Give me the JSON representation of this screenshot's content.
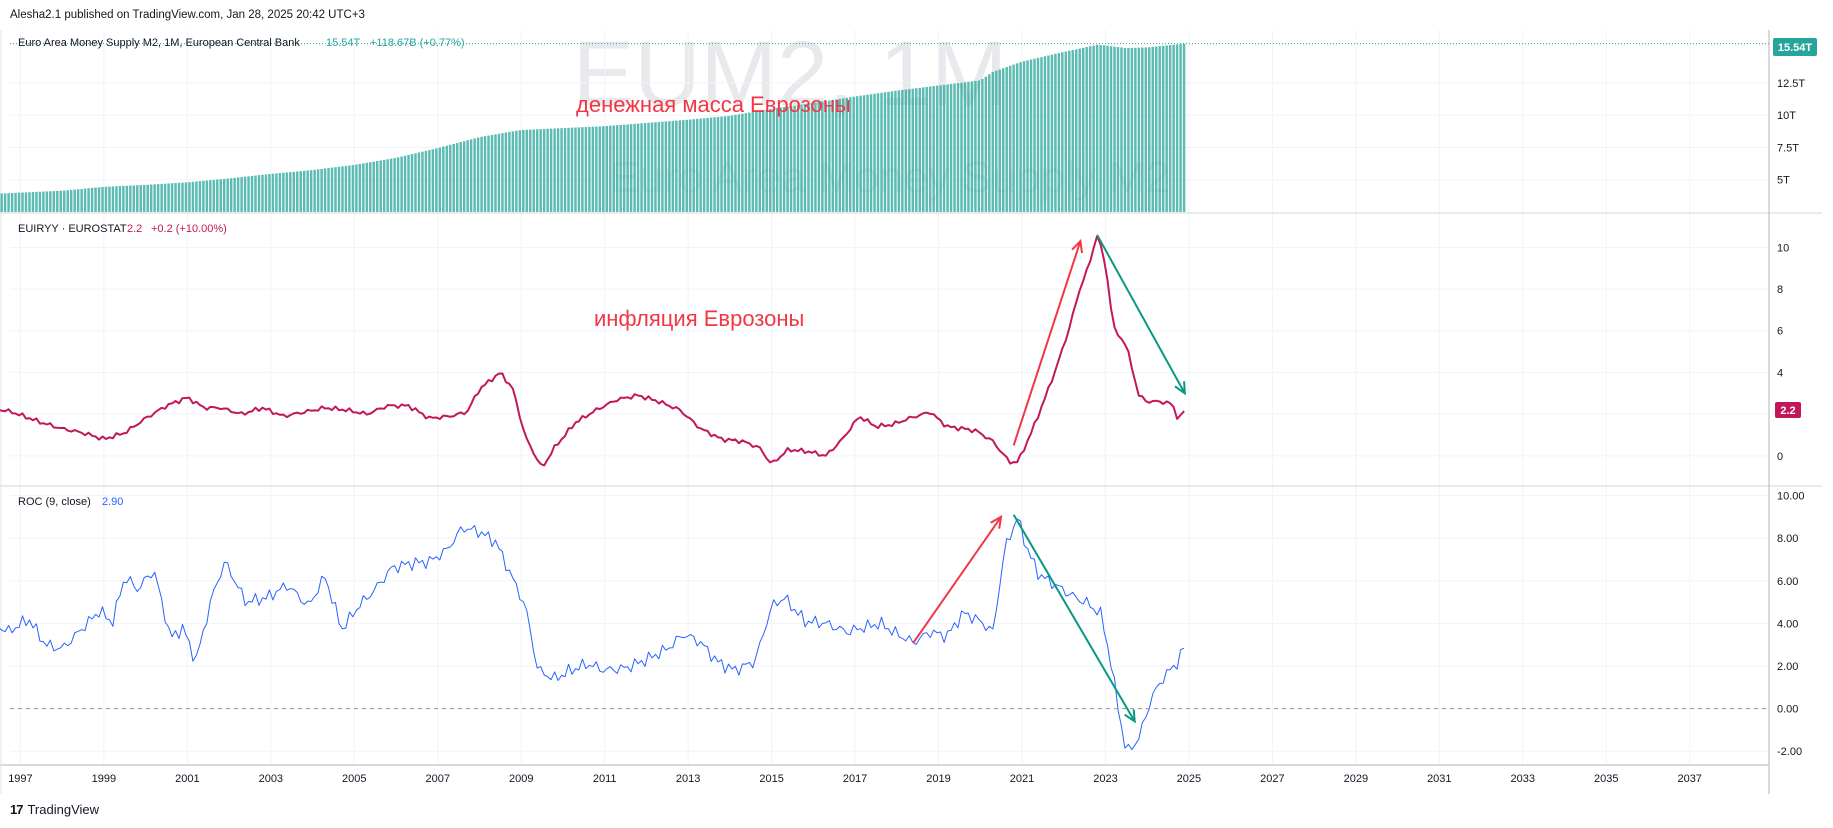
{
  "header": {
    "published": "Alesha2.1 published on TradingView.com, Jan 28, 2025 20:42 UTC+3"
  },
  "footer": {
    "brand": "TradingView",
    "logo_glyph": "17"
  },
  "watermark": {
    "symbol": "EUM2, 1M",
    "name": "Euro Area Money Supply M2"
  },
  "annotations": {
    "m2_label": "денежная масса Еврозоны",
    "inflation_label": "инфляция Еврозоны"
  },
  "colors": {
    "m2": "#26a69a",
    "inflation": "#c2185b",
    "roc": "#2962ff",
    "arrow_red": "#f23645",
    "arrow_green": "#089981",
    "grid": "#f0f3fa",
    "axis_text": "#131722"
  },
  "chart_data": [
    {
      "type": "bar",
      "pane": "top",
      "legend": {
        "title": "Euro Area Money Supply M2, 1M, European Central Bank",
        "value": "15.54T",
        "change": "+118.67B (+0.77%)"
      },
      "y_ticks": [
        "12.5T",
        "10T",
        "7.5T",
        "5T"
      ],
      "y_tick_values": [
        12.5,
        10,
        7.5,
        5
      ],
      "last_value_label": "15.54T",
      "ylim": [
        2.5,
        16.6
      ],
      "unit": "T EUR",
      "x": [
        1996.3,
        1997,
        1998,
        1999,
        2000,
        2001,
        2002,
        2003,
        2004,
        2005,
        2006,
        2007,
        2008,
        2008.8,
        2009,
        2010,
        2011,
        2012,
        2013,
        2014,
        2015,
        2016,
        2017,
        2018,
        2019,
        2020,
        2020.3,
        2021,
        2022,
        2022.8,
        2023,
        2023.5,
        2024,
        2024.9
      ],
      "values": [
        3.9,
        4.0,
        4.15,
        4.45,
        4.6,
        4.8,
        5.1,
        5.45,
        5.75,
        6.15,
        6.7,
        7.45,
        8.3,
        8.75,
        8.85,
        9.0,
        9.15,
        9.4,
        9.65,
        9.95,
        10.5,
        10.95,
        11.45,
        11.9,
        12.3,
        12.7,
        13.35,
        14.15,
        14.9,
        15.45,
        15.4,
        15.2,
        15.25,
        15.54
      ]
    },
    {
      "type": "line",
      "pane": "middle",
      "legend": {
        "title": "EUIRYY · EUROSTAT",
        "value": "2.2",
        "change": "+0.2 (+10.00%)"
      },
      "y_ticks": [
        "10",
        "8",
        "6",
        "4",
        "2",
        "0"
      ],
      "y_tick_values": [
        10,
        8,
        6,
        4,
        2,
        0
      ],
      "last_value_label": "2.2",
      "ylim": [
        -1.4,
        11.6
      ],
      "unit": "%",
      "x": [
        1996.3,
        1996.8,
        1997.5,
        1998,
        1998.5,
        1999,
        1999.5,
        2000,
        2000.5,
        2001,
        2001.4,
        2001.8,
        2002.3,
        2002.8,
        2003.3,
        2003.8,
        2004.3,
        2004.8,
        2005.3,
        2005.8,
        2006.3,
        2006.8,
        2007.3,
        2007.7,
        2008.0,
        2008.5,
        2008.8,
        2009.1,
        2009.5,
        2009.8,
        2010.3,
        2010.8,
        2011.3,
        2011.8,
        2012.3,
        2012.8,
        2013.3,
        2013.8,
        2014.3,
        2014.7,
        2015.0,
        2015.4,
        2015.9,
        2016.3,
        2016.7,
        2017.1,
        2017.5,
        2017.9,
        2018.3,
        2018.8,
        2019.2,
        2019.6,
        2019.9,
        2020.3,
        2020.7,
        2020.9,
        2021.2,
        2021.5,
        2021.8,
        2022.1,
        2022.4,
        2022.6,
        2022.8,
        2023.0,
        2023.2,
        2023.5,
        2023.8,
        2024.0,
        2024.3,
        2024.6,
        2024.75,
        2024.9
      ],
      "values": [
        2.3,
        2.1,
        1.6,
        1.3,
        1.1,
        0.8,
        1.1,
        1.8,
        2.4,
        2.8,
        2.3,
        2.3,
        2.0,
        2.3,
        1.9,
        2.1,
        2.3,
        2.2,
        2.0,
        2.4,
        2.4,
        1.8,
        1.9,
        2.1,
        3.2,
        4.0,
        3.2,
        0.9,
        -0.6,
        0.4,
        1.6,
        2.2,
        2.7,
        2.9,
        2.6,
        2.2,
        1.3,
        0.8,
        0.7,
        0.4,
        -0.4,
        0.3,
        0.2,
        0.0,
        0.8,
        1.9,
        1.4,
        1.5,
        1.8,
        2.1,
        1.4,
        1.3,
        1.2,
        0.7,
        -0.3,
        -0.3,
        1.0,
        2.5,
        4.1,
        5.9,
        8.1,
        9.1,
        10.6,
        9.2,
        6.1,
        5.3,
        2.9,
        2.6,
        2.6,
        2.5,
        1.7,
        2.2
      ]
    },
    {
      "type": "line",
      "pane": "bottom",
      "legend": {
        "title": "ROC (9, close)",
        "value": "2.90"
      },
      "y_ticks": [
        "10.00",
        "8.00",
        "6.00",
        "4.00",
        "2.00",
        "0.00",
        "-2.00"
      ],
      "y_tick_values": [
        10,
        8,
        6,
        4,
        2,
        0,
        -2
      ],
      "zero_line": 0,
      "ylim": [
        -2.6,
        10.4
      ],
      "unit": "%",
      "x": [
        1996.3,
        1996.7,
        1997.2,
        1997.6,
        1998.0,
        1998.5,
        1998.9,
        1999.2,
        1999.5,
        1999.8,
        2000.2,
        2000.6,
        2000.9,
        2001.2,
        2001.6,
        2001.9,
        2002.4,
        2002.9,
        2003.4,
        2003.9,
        2004.3,
        2004.7,
        2005.1,
        2005.5,
        2005.9,
        2006.3,
        2006.8,
        2007.2,
        2007.6,
        2008.0,
        2008.4,
        2008.7,
        2009.1,
        2009.4,
        2009.8,
        2010.2,
        2010.6,
        2011.0,
        2011.5,
        2012.0,
        2012.5,
        2012.9,
        2013.3,
        2013.7,
        2014.1,
        2014.6,
        2015.0,
        2015.3,
        2015.8,
        2016.3,
        2016.8,
        2017.2,
        2017.6,
        2018.0,
        2018.4,
        2018.8,
        2019.2,
        2019.6,
        2020.0,
        2020.3,
        2020.6,
        2020.9,
        2021.1,
        2021.4,
        2021.8,
        2022.2,
        2022.6,
        2022.9,
        2023.1,
        2023.3,
        2023.5,
        2023.8,
        2024.1,
        2024.4,
        2024.7,
        2024.9
      ],
      "values": [
        4.1,
        3.6,
        4.2,
        3.0,
        2.8,
        3.8,
        4.6,
        4.0,
        6.2,
        5.6,
        6.5,
        3.3,
        3.8,
        2.2,
        5.3,
        6.9,
        5.0,
        5.2,
        5.8,
        4.8,
        6.2,
        3.7,
        4.8,
        5.6,
        6.6,
        6.8,
        6.9,
        7.4,
        8.5,
        8.3,
        7.8,
        6.5,
        4.8,
        1.8,
        1.4,
        1.8,
        2.1,
        1.8,
        1.9,
        2.3,
        2.8,
        3.5,
        3.1,
        2.2,
        1.8,
        2.2,
        4.8,
        5.2,
        4.1,
        4.0,
        3.6,
        3.8,
        4.0,
        3.5,
        3.1,
        3.6,
        3.4,
        4.5,
        4.1,
        3.6,
        7.6,
        9.0,
        7.6,
        6.3,
        5.8,
        5.3,
        4.9,
        4.4,
        2.5,
        0.1,
        -2.1,
        -1.4,
        0.5,
        1.5,
        2.1,
        2.9
      ]
    }
  ],
  "x_axis": {
    "ticks": [
      "1997",
      "1999",
      "2001",
      "2003",
      "2005",
      "2007",
      "2009",
      "2011",
      "2013",
      "2015",
      "2017",
      "2019",
      "2021",
      "2023",
      "2025",
      "2027",
      "2029",
      "2031",
      "2033",
      "2035",
      "2037"
    ],
    "tick_values": [
      1997,
      1999,
      2001,
      2003,
      2005,
      2007,
      2009,
      2011,
      2013,
      2015,
      2017,
      2019,
      2021,
      2023,
      2025,
      2027,
      2029,
      2031,
      2033,
      2035,
      2037
    ],
    "range": [
      1996.75,
      2038.9
    ]
  },
  "arrows": [
    {
      "pane": "middle",
      "color": "red",
      "from": [
        2020.8,
        0.5
      ],
      "to": [
        2022.4,
        10.3
      ]
    },
    {
      "pane": "middle",
      "color": "green",
      "from": [
        2022.8,
        10.6
      ],
      "to": [
        2024.9,
        3.0
      ]
    },
    {
      "pane": "bottom",
      "color": "red",
      "from": [
        2018.4,
        3.1
      ],
      "to": [
        2020.5,
        9.0
      ]
    },
    {
      "pane": "bottom",
      "color": "green",
      "from": [
        2020.8,
        9.1
      ],
      "to": [
        2023.7,
        -0.6
      ]
    }
  ]
}
